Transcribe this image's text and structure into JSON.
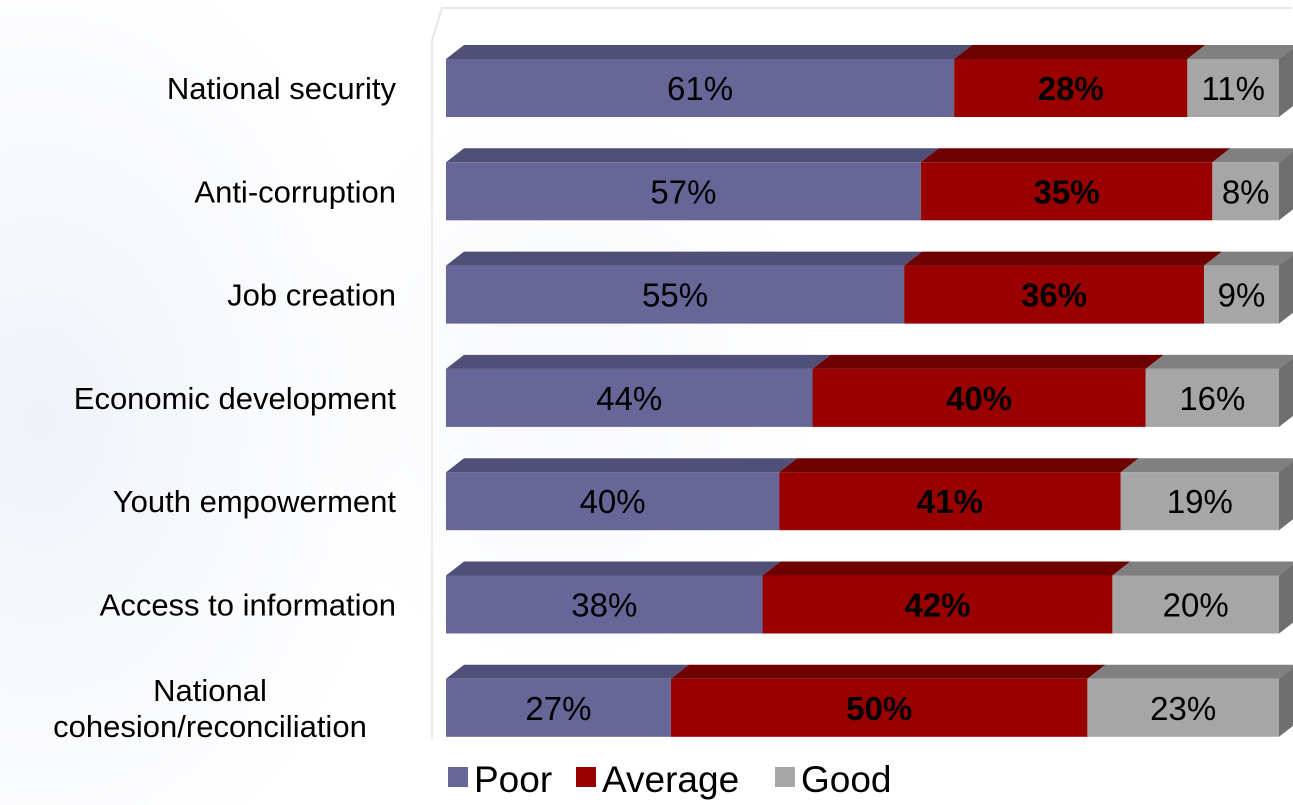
{
  "chart_data": {
    "type": "bar",
    "orientation": "horizontal",
    "stacked": true,
    "percent_stacked": true,
    "grid": false,
    "legend_position": "bottom",
    "xlim": [
      0,
      100
    ],
    "categories": [
      "National security",
      "Anti-corruption",
      "Job creation",
      "Economic development",
      "Youth empowerment",
      "Access to information",
      "National cohesion/reconciliation"
    ],
    "category_lines": [
      [
        "National security"
      ],
      [
        "Anti-corruption"
      ],
      [
        "Job creation"
      ],
      [
        "Economic development"
      ],
      [
        "Youth empowerment"
      ],
      [
        "Access to information"
      ],
      [
        "National",
        "cohesion/reconciliation"
      ]
    ],
    "series": [
      {
        "name": "Poor",
        "color": "#666699",
        "top_color": "#4f4f78",
        "label_color": "#000000",
        "label_bold": false,
        "values": [
          61,
          57,
          55,
          44,
          40,
          38,
          27
        ]
      },
      {
        "name": "Average",
        "color": "#990000",
        "top_color": "#6e0000",
        "label_color": "#000000",
        "label_bold": true,
        "values": [
          28,
          35,
          36,
          40,
          41,
          42,
          50
        ]
      },
      {
        "name": "Good",
        "color": "#a6a6a6",
        "top_color": "#808080",
        "label_color": "#000000",
        "label_bold": false,
        "values": [
          11,
          8,
          9,
          16,
          19,
          20,
          23
        ]
      }
    ],
    "value_suffix": "%"
  }
}
